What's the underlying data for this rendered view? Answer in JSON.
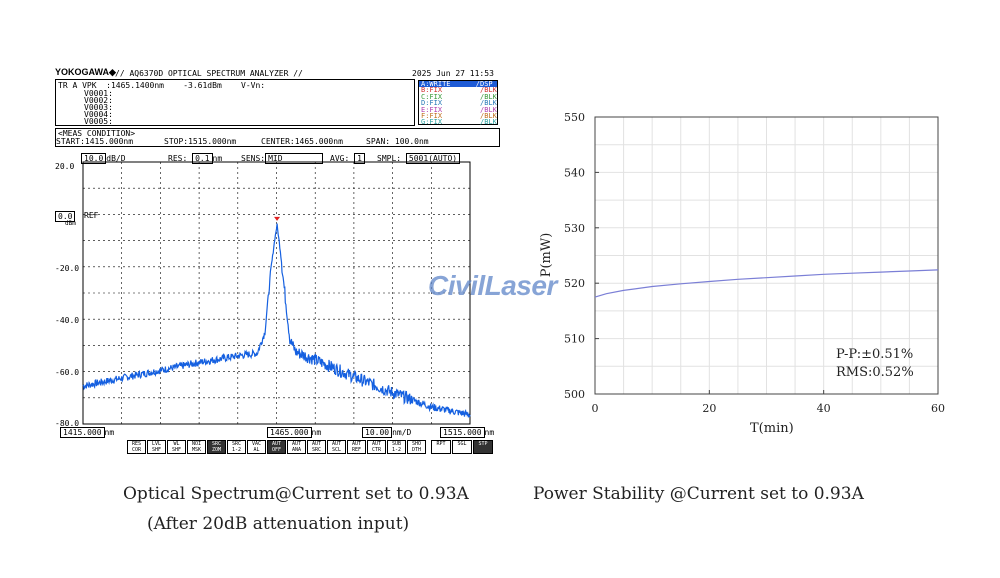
{
  "osa": {
    "brand": "YOKOGAWA◆",
    "model": "// AQ6370D OPTICAL SPECTRUM ANALYZER //",
    "datetime": "2025 Jun 27 11:53",
    "trace_line": "TR A VPK  :1465.1400nm    -3.61dBm    V-Vn:",
    "markers": [
      "V0001:",
      "V0002:",
      "V0003:",
      "V0004:",
      "V0005:"
    ],
    "traces": [
      "A:WRITE      /DSP",
      "B:FIX         /BLK",
      "C:FIX         /BLK",
      "D:FIX         /BLK",
      "E:FIX         /BLK",
      "F:FIX         /BLK",
      "G:FIX         /BLK"
    ],
    "meas_title": "<MEAS CONDITION>",
    "start": "START:1415.000nm",
    "stop": "STOP:1515.000nm",
    "center": "CENTER:1465.000nm",
    "span": "SPAN: 100.0nm",
    "scale_value": "10.0",
    "scale_unit": "dB/D",
    "res_label": "RES:",
    "res_value": "0.1",
    "res_unit": "nm",
    "sens_label": "SENS:",
    "sens_value": "MID",
    "avg_label": "AVG:",
    "avg_value": "1",
    "smpl_label": "SMPL:",
    "smpl_value": "5001(AUTO)",
    "ref_value": "0.0",
    "ref_label": "REF",
    "ref_unit": "dBm",
    "bottom_start": "1415.000",
    "bottom_center": "1465.000",
    "bottom_span": "10.00",
    "bottom_stop": "1515.000",
    "unit_nm": "nm",
    "unit_nmd": "nm/D",
    "keys": [
      "RES COR",
      "LVL SHF",
      "WL SHF",
      "NOI MSK",
      "SRC ZOM",
      "SRC 1-2",
      "VAC AL",
      "AUT OFF",
      "AUT ANA",
      "AUT SRC",
      "AUT SCL",
      "AUT REF",
      "AUT CTR",
      "SUB 1-2",
      "SHO DTH",
      "RPT",
      "SGL",
      "STP"
    ]
  },
  "watermark": "CivilLaser",
  "captions": {
    "left_line1": "Optical Spectrum@Current set to 0.93A",
    "left_line2": "(After 20dB attenuation input)",
    "right": "Power Stability @Current set to 0.93A"
  },
  "chart_data": [
    {
      "type": "line",
      "title": "",
      "xlabel": "",
      "ylabel": "",
      "xlim": [
        1415,
        1515
      ],
      "ylim": [
        -80,
        20
      ],
      "x_ticks": [],
      "y_ticks": [
        20,
        -20,
        -40,
        -60,
        -80
      ],
      "y_tick_labels": [
        "20.0",
        "-20.0",
        "-40.0",
        "-60.0",
        "-80.0"
      ],
      "grid": true,
      "color": "#1560e0",
      "marker_point": {
        "x": 1465.14,
        "y": -3.61
      },
      "series": [
        {
          "x": [
            1415,
            1425,
            1435,
            1445,
            1455,
            1460,
            1462,
            1463.5,
            1464.5,
            1465.14,
            1466,
            1467,
            1468.5,
            1470,
            1475,
            1485,
            1495,
            1505,
            1515
          ],
          "values": [
            -65.5,
            -62.5,
            -59.5,
            -56.5,
            -54,
            -53,
            -45,
            -22,
            -10,
            -4,
            -14,
            -28,
            -48,
            -52.5,
            -55.5,
            -62,
            -68,
            -73.5,
            -76.5
          ]
        }
      ]
    },
    {
      "type": "line",
      "title": "",
      "xlabel": "T(min)",
      "ylabel": "P(mW)",
      "xlim": [
        0,
        60
      ],
      "ylim": [
        500,
        550
      ],
      "x_ticks": [
        0,
        20,
        40,
        60
      ],
      "y_ticks": [
        500,
        510,
        520,
        530,
        540,
        550
      ],
      "grid": true,
      "color": "#7b7fd6",
      "annotations": [
        "P-P:±0.51%",
        "RMS:0.52%"
      ],
      "series": [
        {
          "x": [
            0,
            2,
            5,
            10,
            15,
            20,
            25,
            30,
            35,
            40,
            45,
            50,
            55,
            60
          ],
          "values": [
            517.5,
            518.1,
            518.7,
            519.4,
            519.9,
            520.3,
            520.7,
            521.0,
            521.3,
            521.6,
            521.8,
            522.0,
            522.2,
            522.4
          ]
        }
      ]
    }
  ]
}
